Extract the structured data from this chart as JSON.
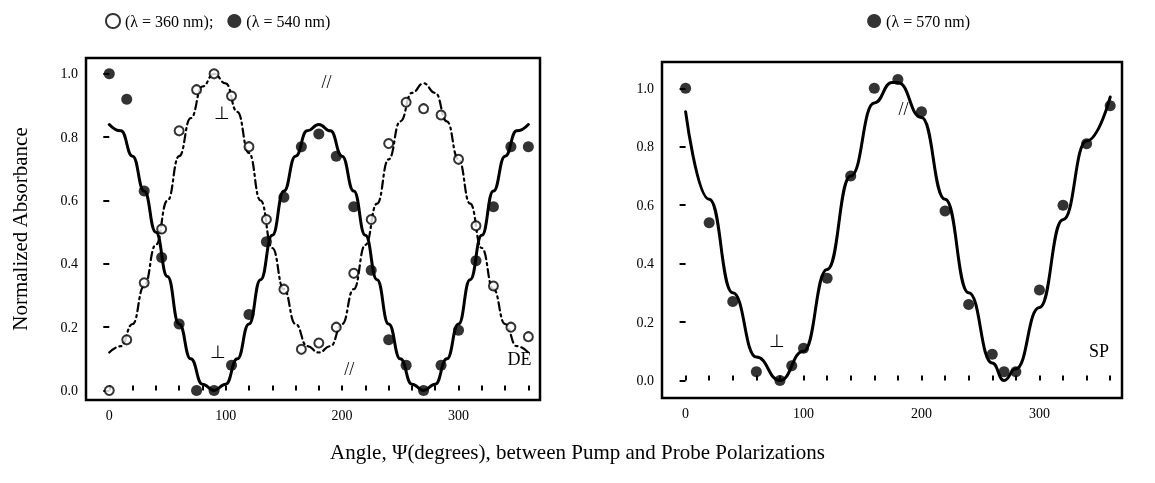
{
  "chart_data": [
    {
      "type": "scatter",
      "ylabel": "Normalized Absorbance",
      "xlabel": "Angle, Ψ(degrees), between Pump and Probe Polarizations",
      "xlim": [
        -20,
        370
      ],
      "ylim": [
        -0.03,
        1.05
      ],
      "xticks": [
        0,
        {
          "value": 20,
          "label": null
        },
        {
          "value": 40,
          "label": null
        },
        {
          "value": 60,
          "label": null
        },
        {
          "value": 80,
          "label": null
        },
        100,
        {
          "value": 120,
          "label": null
        },
        {
          "value": 140,
          "label": null
        },
        {
          "value": 160,
          "label": null
        },
        {
          "value": 180,
          "label": null
        },
        200,
        {
          "value": 220,
          "label": null
        },
        {
          "value": 240,
          "label": null
        },
        {
          "value": 260,
          "label": null
        },
        {
          "value": 280,
          "label": null
        },
        300,
        {
          "value": 320,
          "label": null
        },
        {
          "value": 340,
          "label": null
        },
        {
          "value": 360,
          "label": null
        }
      ],
      "yticks": [
        {
          "value": 0,
          "label": "0.0"
        },
        {
          "value": 0.2,
          "label": "0.2"
        },
        {
          "value": 0.4,
          "label": "0.4"
        },
        {
          "value": 0.6,
          "label": "0.6"
        },
        {
          "value": 0.8,
          "label": "0.8"
        },
        {
          "value": 1,
          "label": "1.0"
        }
      ],
      "grid": false,
      "legend": "top left",
      "marker": "circle",
      "series": [
        {
          "name": "(λ = 360 nm);",
          "marker": "circle-open",
          "color": "#000000",
          "x": [
            0,
            15,
            30,
            45,
            60,
            75,
            90,
            105,
            120,
            135,
            150,
            165,
            180,
            195,
            210,
            225,
            240,
            255,
            270,
            285,
            300,
            315,
            330,
            345,
            360
          ],
          "values": [
            0.0,
            0.16,
            0.34,
            0.51,
            0.82,
            0.95,
            1.0,
            0.93,
            0.77,
            0.54,
            0.32,
            0.13,
            0.15,
            0.2,
            0.37,
            0.54,
            0.78,
            0.91,
            0.89,
            0.87,
            0.73,
            0.52,
            0.33,
            0.2,
            0.17
          ]
        },
        {
          "name": "(λ = 540 nm)",
          "color": "#000000",
          "x": [
            0,
            15,
            30,
            45,
            60,
            75,
            90,
            105,
            120,
            135,
            150,
            165,
            180,
            195,
            210,
            225,
            240,
            255,
            270,
            285,
            300,
            315,
            330,
            345,
            360
          ],
          "values": [
            1.0,
            0.92,
            0.63,
            0.42,
            0.21,
            0.0,
            0.0,
            0.08,
            0.24,
            0.47,
            0.61,
            0.77,
            0.81,
            0.74,
            0.58,
            0.38,
            0.16,
            0.08,
            0.0,
            0.08,
            0.19,
            0.41,
            0.58,
            0.77,
            0.77
          ]
        },
        {
          "type": "line",
          "marker": "none",
          "line_style": "dashed",
          "color": "#000000",
          "x": [
            0,
            10,
            20,
            30,
            40,
            50,
            60,
            70,
            80,
            90,
            100,
            110,
            120,
            130,
            140,
            150,
            160,
            170,
            180,
            190,
            200,
            210,
            220,
            230,
            240,
            250,
            260,
            270,
            280,
            290,
            300,
            310,
            320,
            330,
            340,
            350,
            360
          ],
          "values": [
            0.12,
            0.14,
            0.21,
            0.33,
            0.46,
            0.6,
            0.74,
            0.86,
            0.96,
            1.0,
            0.97,
            0.88,
            0.75,
            0.6,
            0.45,
            0.32,
            0.21,
            0.14,
            0.12,
            0.14,
            0.21,
            0.32,
            0.46,
            0.59,
            0.73,
            0.85,
            0.94,
            0.97,
            0.94,
            0.85,
            0.73,
            0.59,
            0.45,
            0.32,
            0.21,
            0.14,
            0.12
          ]
        },
        {
          "type": "line",
          "marker": "none",
          "line_style": "solid",
          "color": "#000000",
          "x": [
            0,
            10,
            20,
            30,
            40,
            50,
            60,
            70,
            80,
            90,
            100,
            110,
            120,
            130,
            140,
            150,
            160,
            170,
            180,
            190,
            200,
            210,
            220,
            230,
            240,
            250,
            260,
            270,
            280,
            290,
            300,
            310,
            320,
            330,
            340,
            350,
            360
          ],
          "values": [
            0.84,
            0.82,
            0.74,
            0.63,
            0.5,
            0.36,
            0.21,
            0.1,
            0.02,
            0.0,
            0.02,
            0.1,
            0.21,
            0.35,
            0.49,
            0.63,
            0.74,
            0.82,
            0.84,
            0.82,
            0.74,
            0.63,
            0.49,
            0.35,
            0.21,
            0.1,
            0.02,
            0.0,
            0.02,
            0.1,
            0.21,
            0.35,
            0.49,
            0.63,
            0.74,
            0.82,
            0.84
          ]
        }
      ],
      "annotations": [
        "⊥",
        "⊥",
        "//",
        "//",
        "DE"
      ]
    },
    {
      "type": "scatter",
      "xlim": [
        -20,
        370
      ],
      "ylim": [
        -0.06,
        1.09
      ],
      "xticks": [
        0,
        {
          "value": 20,
          "label": null
        },
        {
          "value": 40,
          "label": null
        },
        {
          "value": 60,
          "label": null
        },
        {
          "value": 80,
          "label": null
        },
        100,
        {
          "value": 120,
          "label": null
        },
        {
          "value": 140,
          "label": null
        },
        {
          "value": 160,
          "label": null
        },
        {
          "value": 180,
          "label": null
        },
        200,
        {
          "value": 220,
          "label": null
        },
        {
          "value": 240,
          "label": null
        },
        {
          "value": 260,
          "label": null
        },
        {
          "value": 280,
          "label": null
        },
        300,
        {
          "value": 320,
          "label": null
        },
        {
          "value": 340,
          "label": null
        },
        {
          "value": 360,
          "label": null
        }
      ],
      "yticks": [
        {
          "value": 0,
          "label": "0.0"
        },
        {
          "value": 0.2,
          "label": "0.2"
        },
        {
          "value": 0.4,
          "label": "0.4"
        },
        {
          "value": 0.6,
          "label": "0.6"
        },
        {
          "value": 0.8,
          "label": "0.8"
        },
        {
          "value": 1,
          "label": "1.0"
        }
      ],
      "grid": false,
      "legend": "top right",
      "marker": "circle",
      "series": [
        {
          "name": "(λ = 570 nm)",
          "color": "#000000",
          "x": [
            0,
            20,
            40,
            60,
            80,
            90,
            100,
            120,
            140,
            160,
            180,
            200,
            220,
            240,
            260,
            270,
            280,
            300,
            320,
            340,
            360
          ],
          "values": [
            1.0,
            0.54,
            0.27,
            0.03,
            0.0,
            0.05,
            0.11,
            0.35,
            0.7,
            1.0,
            1.03,
            0.92,
            0.58,
            0.26,
            0.09,
            0.03,
            0.03,
            0.31,
            0.6,
            0.81,
            0.94
          ]
        },
        {
          "type": "line",
          "marker": "none",
          "line_style": "solid",
          "color": "#000000",
          "x": [
            0,
            20,
            40,
            60,
            80,
            100,
            120,
            140,
            160,
            175,
            180,
            200,
            220,
            240,
            260,
            270,
            280,
            300,
            320,
            340,
            360
          ],
          "values": [
            0.92,
            0.62,
            0.3,
            0.08,
            0.0,
            0.1,
            0.38,
            0.7,
            0.95,
            1.02,
            1.02,
            0.9,
            0.62,
            0.3,
            0.06,
            0.0,
            0.04,
            0.25,
            0.55,
            0.82,
            0.97
          ]
        }
      ],
      "annotations": [
        "⊥",
        "//",
        "SP"
      ]
    }
  ]
}
